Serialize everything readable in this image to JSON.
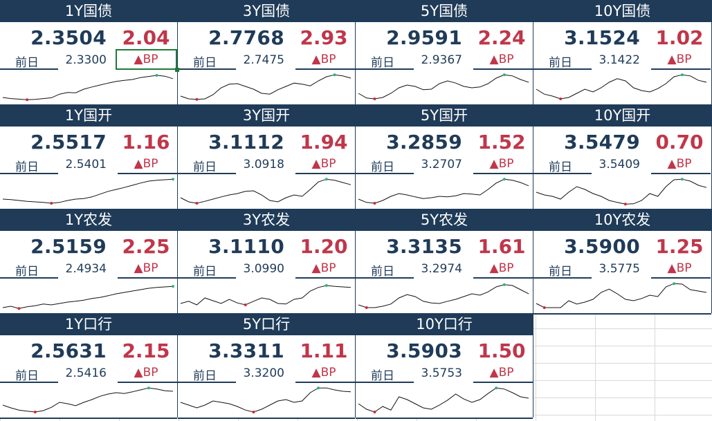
{
  "tiles": [
    {
      "title": "1Y国债",
      "value": "2.3504",
      "change": "2.04",
      "prev_label": "前日",
      "prev": "2.3300",
      "bp": "▲BP",
      "series": [
        0.1,
        0.06,
        0.04,
        0.02,
        0.03,
        0.06,
        0.09,
        0.22,
        0.28,
        0.27,
        0.4,
        0.48,
        0.55,
        0.62,
        0.68,
        0.72,
        0.75,
        0.82,
        0.86,
        0.9,
        0.87,
        0.78
      ],
      "min_idx": 3,
      "max_idx": 19
    },
    {
      "title": "3Y国债",
      "value": "2.7768",
      "change": "2.93",
      "prev_label": "前日",
      "prev": "2.7475",
      "bp": "▲BP",
      "series": [
        0.15,
        0.05,
        0.03,
        0.05,
        0.2,
        0.45,
        0.58,
        0.6,
        0.5,
        0.4,
        0.25,
        0.22,
        0.38,
        0.5,
        0.62,
        0.58,
        0.52,
        0.7,
        0.85,
        0.92,
        0.88,
        0.8
      ],
      "min_idx": 2,
      "max_idx": 19
    },
    {
      "title": "5Y国债",
      "value": "2.9591",
      "change": "2.24",
      "prev_label": "前日",
      "prev": "2.9367",
      "bp": "▲BP",
      "series": [
        0.25,
        0.08,
        0.05,
        0.1,
        0.25,
        0.45,
        0.55,
        0.5,
        0.38,
        0.4,
        0.6,
        0.7,
        0.62,
        0.5,
        0.45,
        0.48,
        0.6,
        0.8,
        0.92,
        0.88,
        0.75,
        0.65
      ],
      "min_idx": 2,
      "max_idx": 18
    },
    {
      "title": "10Y国债",
      "value": "3.1524",
      "change": "1.02",
      "prev_label": "前日",
      "prev": "3.1422",
      "bp": "▲BP",
      "series": [
        0.4,
        0.22,
        0.15,
        0.05,
        0.1,
        0.25,
        0.4,
        0.3,
        0.45,
        0.65,
        0.78,
        0.7,
        0.45,
        0.35,
        0.3,
        0.42,
        0.6,
        0.85,
        0.92,
        0.88,
        0.72,
        0.65
      ],
      "min_idx": 3,
      "max_idx": 18
    },
    {
      "title": "1Y国开",
      "value": "2.5517",
      "change": "1.16",
      "prev_label": "前日",
      "prev": "2.5401",
      "bp": "▲BP",
      "series": [
        0.2,
        0.18,
        0.15,
        0.12,
        0.1,
        0.08,
        0.05,
        0.08,
        0.15,
        0.2,
        0.22,
        0.28,
        0.38,
        0.48,
        0.55,
        0.62,
        0.7,
        0.78,
        0.85,
        0.88,
        0.9,
        0.92
      ],
      "min_idx": 6,
      "max_idx": 21
    },
    {
      "title": "3Y国开",
      "value": "3.1112",
      "change": "1.94",
      "prev_label": "前日",
      "prev": "3.0918",
      "bp": "▲BP",
      "series": [
        0.25,
        0.1,
        0.05,
        0.12,
        0.2,
        0.28,
        0.35,
        0.4,
        0.48,
        0.5,
        0.35,
        0.15,
        0.1,
        0.25,
        0.35,
        0.3,
        0.55,
        0.82,
        0.92,
        0.88,
        0.8,
        0.72
      ],
      "min_idx": 2,
      "max_idx": 18
    },
    {
      "title": "5Y国开",
      "value": "3.2859",
      "change": "1.52",
      "prev_label": "前日",
      "prev": "3.2707",
      "bp": "▲BP",
      "series": [
        0.2,
        0.08,
        0.05,
        0.15,
        0.3,
        0.4,
        0.35,
        0.28,
        0.22,
        0.25,
        0.3,
        0.28,
        0.32,
        0.4,
        0.38,
        0.35,
        0.55,
        0.78,
        0.92,
        0.88,
        0.8,
        0.68
      ],
      "min_idx": 2,
      "max_idx": 18
    },
    {
      "title": "10Y国开",
      "value": "3.5479",
      "change": "0.70",
      "prev_label": "前日",
      "prev": "3.5409",
      "bp": "▲BP",
      "series": [
        0.45,
        0.35,
        0.3,
        0.2,
        0.45,
        0.65,
        0.55,
        0.4,
        0.3,
        0.15,
        0.08,
        0.02,
        0.03,
        0.15,
        0.4,
        0.3,
        0.65,
        0.9,
        0.92,
        0.85,
        0.7,
        0.62
      ],
      "min_idx": 11,
      "max_idx": 18
    },
    {
      "title": "1Y农发",
      "value": "2.5159",
      "change": "2.25",
      "prev_label": "前日",
      "prev": "2.4934",
      "bp": "▲BP",
      "series": [
        0.05,
        0.1,
        0.02,
        0.08,
        0.12,
        0.18,
        0.15,
        0.2,
        0.25,
        0.28,
        0.32,
        0.38,
        0.42,
        0.48,
        0.55,
        0.6,
        0.65,
        0.7,
        0.75,
        0.78,
        0.8,
        0.82
      ],
      "min_idx": 2,
      "max_idx": 21
    },
    {
      "title": "3Y农发",
      "value": "3.1110",
      "change": "1.20",
      "prev_label": "前日",
      "prev": "3.0990",
      "bp": "▲BP",
      "series": [
        0.2,
        0.28,
        0.15,
        0.4,
        0.3,
        0.2,
        0.35,
        0.22,
        0.15,
        0.28,
        0.4,
        0.35,
        0.2,
        0.18,
        0.35,
        0.4,
        0.65,
        0.78,
        0.85,
        0.82,
        0.8,
        0.78
      ],
      "min_idx": 8,
      "max_idx": 18
    },
    {
      "title": "5Y农发",
      "value": "3.3135",
      "change": "1.61",
      "prev_label": "前日",
      "prev": "3.2974",
      "bp": "▲BP",
      "series": [
        0.15,
        0.05,
        0.05,
        0.1,
        0.18,
        0.4,
        0.52,
        0.45,
        0.28,
        0.22,
        0.2,
        0.28,
        0.35,
        0.45,
        0.55,
        0.5,
        0.62,
        0.8,
        0.88,
        0.85,
        0.7,
        0.55
      ],
      "min_idx": 1,
      "max_idx": 18
    },
    {
      "title": "10Y农发",
      "value": "3.5900",
      "change": "1.25",
      "prev_label": "前日",
      "prev": "3.5775",
      "bp": "▲BP",
      "series": [
        0.2,
        0.05,
        0.05,
        0.05,
        0.3,
        0.18,
        0.25,
        0.35,
        0.6,
        0.72,
        0.55,
        0.35,
        0.3,
        0.38,
        0.5,
        0.45,
        0.8,
        0.92,
        0.9,
        0.7,
        0.65,
        0.6
      ],
      "min_idx": 1,
      "max_idx": 17
    },
    {
      "title": "1Y口行",
      "value": "2.5631",
      "change": "2.15",
      "prev_label": "前日",
      "prev": "2.5416",
      "bp": "▲BP",
      "series": [
        0.3,
        0.2,
        0.12,
        0.08,
        0.05,
        0.1,
        0.22,
        0.4,
        0.35,
        0.28,
        0.4,
        0.5,
        0.62,
        0.7,
        0.75,
        0.72,
        0.78,
        0.85,
        0.92,
        0.88,
        0.82,
        0.8
      ],
      "min_idx": 4,
      "max_idx": 18
    },
    {
      "title": "5Y口行",
      "value": "3.3311",
      "change": "1.11",
      "prev_label": "前日",
      "prev": "3.3200",
      "bp": "▲BP",
      "series": [
        0.4,
        0.3,
        0.2,
        0.3,
        0.45,
        0.4,
        0.35,
        0.25,
        0.12,
        0.05,
        0.15,
        0.3,
        0.45,
        0.5,
        0.4,
        0.45,
        0.75,
        0.92,
        0.92,
        0.85,
        0.8,
        0.78
      ],
      "min_idx": 9,
      "max_idx": 17
    },
    {
      "title": "10Y口行",
      "value": "3.5903",
      "change": "1.50",
      "prev_label": "前日",
      "prev": "3.5753",
      "bp": "▲BP",
      "series": [
        0.35,
        0.15,
        0.05,
        0.25,
        0.12,
        0.6,
        0.5,
        0.35,
        0.2,
        0.15,
        0.3,
        0.48,
        0.7,
        0.52,
        0.4,
        0.5,
        0.72,
        0.92,
        0.88,
        0.75,
        0.6,
        0.55
      ],
      "min_idx": 2,
      "max_idx": 17
    }
  ],
  "colors": {
    "header": "#1f3b58",
    "value": "#1f3b58",
    "change": "#c0364a",
    "line": "#111111",
    "min_dot": "#d0283c",
    "max_dot": "#2bb673",
    "selection": "#1d7a3a"
  }
}
